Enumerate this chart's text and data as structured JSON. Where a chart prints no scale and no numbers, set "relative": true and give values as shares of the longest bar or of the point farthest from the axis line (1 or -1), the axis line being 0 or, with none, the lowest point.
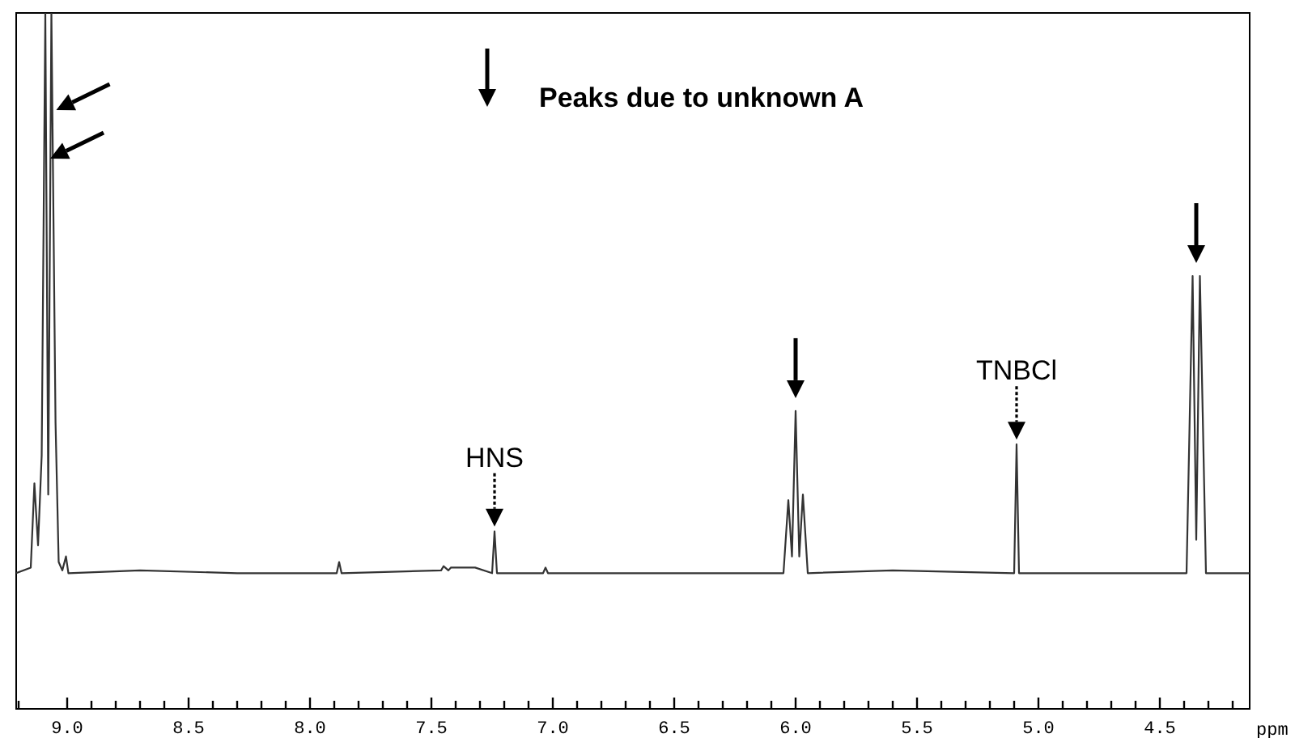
{
  "chart_data": {
    "type": "line",
    "relative": true,
    "xlabel": "ppm",
    "tick_labels": "x",
    "xlim": [
      9.21,
      4.13
    ],
    "xticks": [
      {
        "value": 9.2,
        "label": null
      },
      {
        "value": 9,
        "label": "9.0"
      },
      {
        "value": 8.9,
        "label": null
      },
      {
        "value": 8.8,
        "label": null
      },
      {
        "value": 8.7,
        "label": null
      },
      {
        "value": 8.6,
        "label": null
      },
      {
        "value": 8.5,
        "label": "8.5"
      },
      {
        "value": 8.4,
        "label": null
      },
      {
        "value": 8.3,
        "label": null
      },
      {
        "value": 8.2,
        "label": null
      },
      {
        "value": 8.1,
        "label": null
      },
      {
        "value": 8,
        "label": "8.0"
      },
      {
        "value": 7.9,
        "label": null
      },
      {
        "value": 7.8,
        "label": null
      },
      {
        "value": 7.7,
        "label": null
      },
      {
        "value": 7.6,
        "label": null
      },
      {
        "value": 7.5,
        "label": "7.5"
      },
      {
        "value": 7.4,
        "label": null
      },
      {
        "value": 7.3,
        "label": null
      },
      {
        "value": 7.2,
        "label": null
      },
      {
        "value": 7.1,
        "label": null
      },
      {
        "value": 7,
        "label": "7.0"
      },
      {
        "value": 6.9,
        "label": null
      },
      {
        "value": 6.8,
        "label": null
      },
      {
        "value": 6.7,
        "label": null
      },
      {
        "value": 6.6,
        "label": null
      },
      {
        "value": 6.5,
        "label": "6.5"
      },
      {
        "value": 6.4,
        "label": null
      },
      {
        "value": 6.3,
        "label": null
      },
      {
        "value": 6.2,
        "label": null
      },
      {
        "value": 6.1,
        "label": null
      },
      {
        "value": 6,
        "label": "6.0"
      },
      {
        "value": 5.9,
        "label": null
      },
      {
        "value": 5.8,
        "label": null
      },
      {
        "value": 5.7,
        "label": null
      },
      {
        "value": 5.6,
        "label": null
      },
      {
        "value": 5.5,
        "label": "5.5"
      },
      {
        "value": 5.4,
        "label": null
      },
      {
        "value": 5.3,
        "label": null
      },
      {
        "value": 5.2,
        "label": null
      },
      {
        "value": 5.1,
        "label": null
      },
      {
        "value": 5,
        "label": "5.0"
      },
      {
        "value": 4.9,
        "label": null
      },
      {
        "value": 4.8,
        "label": null
      },
      {
        "value": 4.7,
        "label": null
      },
      {
        "value": 4.6,
        "label": null
      },
      {
        "value": 4.5,
        "label": "4.5"
      },
      {
        "value": 4.4,
        "label": null
      },
      {
        "value": 4.3,
        "label": null
      },
      {
        "value": 4.2,
        "label": null
      }
    ],
    "x": [
      9.21,
      9.15,
      9.135,
      9.12,
      9.105,
      9.09,
      9.078,
      9.065,
      9.048,
      9.035,
      9.02,
      9.005,
      8.995,
      8.7,
      8.3,
      7.89,
      7.88,
      7.87,
      7.46,
      7.45,
      7.43,
      7.42,
      7.35,
      7.32,
      7.25,
      7.24,
      7.23,
      7.04,
      7.03,
      7.02,
      6.5,
      6.05,
      6.03,
      6.015,
      6.0,
      5.985,
      5.97,
      5.95,
      5.6,
      5.1,
      5.09,
      5.08,
      4.39,
      4.365,
      4.35,
      4.335,
      4.31,
      4.13
    ],
    "series": [
      {
        "color": "#333333",
        "values": [
          0.195,
          0.203,
          0.324,
          0.235,
          0.364,
          1,
          0.308,
          1,
          0.412,
          0.211,
          0.199,
          0.219,
          0.195,
          0.199,
          0.195,
          0.195,
          0.211,
          0.195,
          0.199,
          0.205,
          0.199,
          0.203,
          0.203,
          0.203,
          0.195,
          0.255,
          0.195,
          0.195,
          0.203,
          0.195,
          0.195,
          0.195,
          0.3,
          0.219,
          0.428,
          0.219,
          0.308,
          0.195,
          0.199,
          0.195,
          0.38,
          0.195,
          0.195,
          0.622,
          0.243,
          0.622,
          0.195,
          0.195
        ]
      }
    ],
    "annotations": [
      "Peaks due to unknown A",
      {
        "text": "HNS",
        "x": 7.24,
        "y": 0.255
      },
      {
        "text": "TNBCl",
        "x": 5.09,
        "y": 0.38
      }
    ]
  }
}
